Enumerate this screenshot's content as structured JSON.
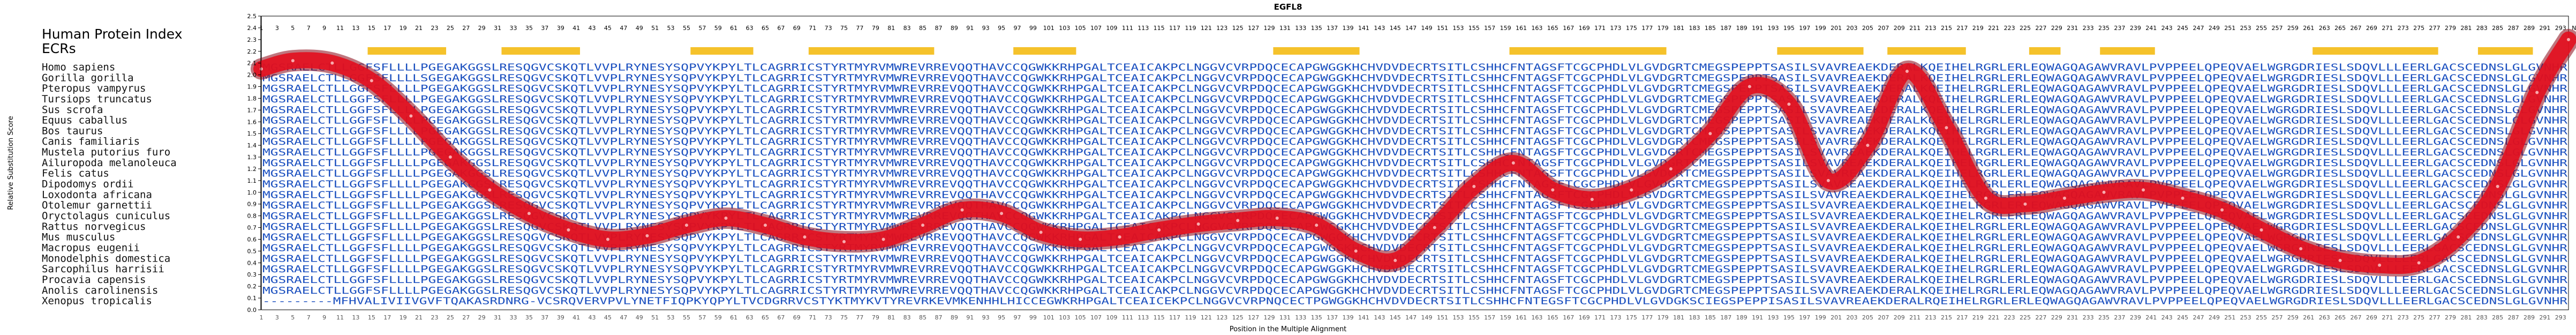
{
  "chart_data": {
    "type": "line",
    "title": "EGFL8",
    "xlabel": "Position in the Multiple Alignment",
    "ylabel": "Relative Substitution Score",
    "xlim": [
      1,
      294
    ],
    "ylim": [
      0,
      2.5
    ],
    "grid": false,
    "yticks": [
      0.0,
      0.1,
      0.2,
      0.3,
      0.4,
      0.5,
      0.6,
      0.7,
      0.8,
      0.9,
      1.0,
      1.1,
      1.2,
      1.3,
      1.4,
      1.5,
      1.6,
      1.7,
      1.8,
      1.9,
      2.0,
      2.1,
      2.2,
      2.3,
      2.4,
      2.5
    ],
    "top_tick_last_label": "N/A",
    "legend_labels": [
      "Human Protein Index",
      "ECRs"
    ],
    "species": [
      "Homo sapiens",
      "Gorilla gorilla",
      "Pteropus vampyrus",
      "Tursiops truncatus",
      "Sus scrofa",
      "Equus caballus",
      "Bos taurus",
      "Canis familiaris",
      "Mustela putorius furo",
      "Ailuropoda melanoleuca",
      "Felis catus",
      "Dipodomys ordii",
      "Loxodonta africana",
      "Otolemur garnettii",
      "Oryctolagus cuniculus",
      "Rattus norvegicus",
      "Mus musculus",
      "Macropus eugenii",
      "Monodelphis domestica",
      "Sarcophilus harrisii",
      "Procavia capensis",
      "Anolis carolinensis",
      "Xenopus tropicalis"
    ],
    "sequences": [
      "MGSRAELCTLLGGFSFLLLLPGEGAKGGSLRESQGVCSKQTLVVPLRYNESYSQPVYKPYLTLCAGRRICSTYRTMYRVMWREVRREVQQTHAVCCQGWKKRHPGALTCEAICAKPCLNGGVCVRPDQCECAPGWGGKHCHVDVDECRTSITLCSHHCFNTAGSFTCGCPHDLVLGVDGRTCMEGSPEPPTSASILSVAVREAEKDERALKQEIHELRGRLERLEQWAGQAGAWVRAVLPVPPEELQPEQVAELWGRGDRIESLSDQVLLLEERLGACSCEDNSLGLGVNHR",
      "MGSRAELCTLLGGFSFLLLLSGEGAKGGSLRESQGVCSKQTLVVPLRYNESYSQPVYKPYLTLCAGRRICSTYRTMYRVMWREVRREVQQTHAVCCQGWKKRHPGALTCEAICAKPCLNGGVCVRPDQCECAPGWGGKHCHVDVDECRTSITLCSHHCFNTAGSFTCGCPHDLVLGVDGRTCMEGSPEPPTSASILSVAVREAEKDERALKQEIHELRGRLERLEQWAGQAGAWVRAVLPVPPEELQPEQVAELWGRGDRIESLSDQVLLLEERLGACSCEDNSLGLGVNHR",
      "MGSRAELCTLLGGFSFLLLLPGEGAKGGSLRESQGVCSKQTLVVPLRYNESYSQPVYKPYLTLCAGRRICSTYRTMYRVMWREVRREVQQTHAVCCQGWKKRHPGALTCEAICAKPCLNGGVCVRPDQCECAPGWGGKHCHVDVDECRTSITLCSHHCFNTAGSFTCGCPHDLVLGVDGRTCMEGSPEPPTSASILSVAVREAEKDERALKQEIHELRGRLERLEQWAGQAGAWVRAVLPVPPEELQPEQVAELWGRGDRIESLSDQVLLLEERLGACSCEDNSLGLGVNHR",
      "MGSRAELCTLLGGFSFLLLLPGEGAKGGSLRESQGVCSKQTLVVPLRYNESYSQPVYKPYLTLCAGRRICSTYRTMYRVMWREVRREVQQTHAVCCQGWKKRHPGALTCEAICAKPCLNGGVCVRPDQCECAPGWGGKHCHVDVDECRTSITLCSHHCFNTAGSFTCGCPHDLVLGVDGRTCMEGSPEPPTSASILSVAVREAEKDERALKQEIHELRGRLERLEQWAGQAGAWVRAVLPVPPEELQPEQVAELWGRGDRIESLSDQVLLLEERLGACSCEDNSLGLGVNHR",
      "MGSRAELCTLLGGFSFLLLLPGEGAKGGSLRESQGVCSKQTLVVPLRYNESYSQPVYKPYLTLCAGRRICSTYRTMYRVMWREVRREVQQTHAVCCQGWKKRHPGALTCEAICAKPCLNGGVCVRPDQCECAPGWGGKHCHVDVDECRTSITLCSHHCFNTAGSFTCGCPHDLVLGVDGRTCMEGSPEPPTSASILSVAVREAEKDERALKQEIHELRGRLERLEQWAGQAGAWVRAVLPVPPEELQPEQVAELWGRGDRIESLSDQVLLLEERLGACSCEDNSLGLGVNHR",
      "MGSRAELCTLLGGFSFLLLLPGEGAKGGSLRESQGVCSKQTLVVPLRYNESYSQPVYKPYLTLCAGRRICSTYRTMYRVMWREVRREVQQTHAVCCQGWKKRHPGALTCEAICAKPCLNGGVCVRPDQCECAPGWGGKHCHVDVDECRTSITLCSHHCFNTAGSFTCGCPHDLVLGVDGRTCMEGSPEPPTSASILSVAVREAEKDERALKQEIHELRGRLERLEQWAGQAGAWVRAVLPVPPEELQPEQVAELWGRGDRIESLSDQVLLLEERLGACSCEDNSLGLGVNHR",
      "MGSRAELCTLLGGFSFLLLLPGEGAKGGSLRESQGVCSKQTLVVPLRYNESYSQPVYKPYLTLCAGRRICSTYRTMYRVMWREVRREVQQTHAVCCQGWKKRHPGALTCEAICAKPCLNGGVCVRPDQCECAPGWGGKHCHVDVDECRTSITLCSHHCFNTAGSFTCGCPHDLVLGVDGRTCMEGSPEPPTSASILSVAVREAEKDERALKQEIHELRGRLERLEQWAGQAGAWVRAVLPVPPEELQPEQVAELWGRGDRIESLSDQVLLLEERLGACSCEDNSLGLGVNHR",
      "MGSRAELCTLLGGFSFLLLLPGEGAKGGSLRESQGVCSKQTLVVPLRYNESYSQPVYKPYLTLCAGRRICSTYRTMYRVMWREVRREVQQTHAVCCQGWKKRHPGALTCEAICAKPCLNGGVCVRPDQCECAPGWGGKHCHVDVDECRTSITLCSHHCFNTAGSFTCGCPHDLVLGVDGRTCMEGSPEPPTSASILSVAVREAEKDERALKQEIHELRGRLERLEQWAGQAGAWVRAVLPVPPEELQPEQVAELWGRGDRIESLSDQVLLLEERLGACSCEDNSLGLGVNHR",
      "MGSRAELCTLLGGFSFLLLLPGEGAKGGSLRESQGVCSKQTLVVPLRYNESYSQPVYKPYLTLCAGRRICSTYRTMYRVMWREVRREVQQTHAVCCQGWKKRHPGALTCEAICAKPCLNGGVCVRPDQCECAPGWGGKHCHVDVDECRTSITLCSHHCFNTAGSFTCGCPHDLVLGVDGRTCMEGSPEPPTSASILSVAVREAEKDERALKQEIHELRGRLERLEQWAGQAGAWVRAVLPVPPEELQPEQVAELWGRGDRIESLSDQVLLLEERLGACSCEDNSLGLGVNHR",
      "MGSRAELCTLLGGFSFLLLLPGEGAKGGSLRESQGVCSKQTLVVPLRYNESYSQPVYKPYLTLCAGRRICSTYRTMYRVMWREVRREVQQTHAVCCQGWKKRHPGALTCEAICAKPCLNGGVCVRPDQCECAPGWGGKHCHVDVDECRTSITLCSHHCFNTAGSFTCGCPHDLVLGVDGRTCMEGSPEPPTSASILSVAVREAEKDERALKQEIHELRGRLERLEQWAGQAGAWVRAVLPVPPEELQPEQVAELWGRGDRIESLSDQVLLLEERLGACSCEDNSLGLGVNHR",
      "MGSRAELCTLLGGFSFLLLLPGEGAKGGSLRESQGVCSKQTLVVPLRYNESYSQPVYKPYLTLCAGRRICSTYRTMYRVMWREVRREVQQTHAVCCQGWKKRHPGALTCEAICAKPCLNGGVCVRPDQCECAPGWGGKHCHVDVDECRTSITLCSHHCFNTAGSFTCGCPHDLVLGVDGRTCMEGSPEPPTSASILSVAVREAEKDERALKQEIHELRGRLERLEQWAGQAGAWVRAVLPVPPEELQPEQVAELWGRGDRIESLSDQVLLLEERLGACSCEDNSLGLGVNHR",
      "MGSRAELCTLLGGFSFLLLLPGEGAKGGSLRESQGVCSKQTLVVPLRYNESYSQPVYKPYLTLCAGRRICSTYRTMYRVMWREVRREVQQTHAVCCQGWKKRHPGALTCEAICAKPCLNGGVCVRPDQCECAPGWGGKHCHVDVDECRTSITLCSHHCFNTAGSFTCGCPHDLVLGVDGRTCMEGSPEPPTSASILSVAVREAEKDERALKQEIHELRGRLERLEQWAGQAGAWVRAVLPVPPEELQPEQVAELWGRGDRIESLSDQVLLLEERLGACSCEDNSLGLGVNHR",
      "MGSRAELCTLLGGFSFLLLLPGEGAKGGSLRESQGVCSKQTLVVPLRYNESYSQPVYKPYLTLCAGRRICSTYRTMYRVMWREVRREVQQTHAVCCQGWKKRHPGALTCEAICAKPCLNGGVCVRPDQCECAPGWGGKHCHVDVDECRTSITLCSHHCFNTAGSFTCGCPHDLVLGVDGRTCMEGSPEPPTSASILSVAVREAEKDERALKQEIHELRGRLERLEQWAGQAGAWVRAVLPVPPEELQPEQVAELWGRGDRIESLSDQVLLLEERLGACSCEDNSLGLGVNHR",
      "MGSRAELCTLLGGFSFLLLLPGEGAKGGSLRESQGVCSKQTLVVPLRYNESYSQPVYKPYLTLCAGRRICSTYRTMYRVMWREVRREVQQTHAVCCQGWKKRHPGALTCEAICAKPCLNGGVCVRPDQCECAPGWGGKHCHVDVDECRTSITLCSHHCFNTAGSFTCGCPHDLVLGVDGRTCMEGSPEPPTSASILSVAVREAEKDERALKQEIHELRGRLERLEQWAGQAGAWVRAVLPVPPEELQPEQVAELWGRGDRIESLSDQVLLLEERLGACSCEDNSLGLGVNHR",
      "MGSRAELCTLLGGFSFLLLLPGEGAKGGSLRESQGVCSKQTLVVPLRYNESYSQPVYKPYLTLCAGRRICSTYRTMYRVMWREVRREVQQTHAVCCQGWKKRHPGALTCEAICAKPCLNGGVCVRPDQCECAPGWGGKHCHVDVDECRTSITLCSHHCFNTAGSFTCGCPHDLVLGVDGRTCMEGSPEPPTSASILSVAVREAEKDERALKQEIHELRGRLERLEQWAGQAGAWVRAVLPVPPEELQPEQVAELWGRGDRIESLSDQVLLLEERLGACSCEDNSLGLGVNHR",
      "MGSRAELCTLLGGFSFLLLLPGEGAKGGSLRESQGVCSKQTLVVPLRYNESYSQPVYKPYLTLCAGRRICSTYRTMYRVMWREVRREVQQTHAVCCQGWKKRHPGALTCEAICAKPCLNGGVCVRPDQCECAPGWGGKHCHVDVDECRTSITLCSHHCFNTAGSFTCGCPHDLVLGVDGRTCMEGSPEPPTSASILSVAVREAEKDERALKQEIHELRGRLERLEQWAGQAGAWVRAVLPVPPEELQPEQVAELWGRGDRIESLSDQVLLLEERLGACSCEDNSLGLGVNHR",
      "MGSRAELCTLLGGFSFLLLLPGEGAKGGSLRESQGVCSKQTLVVPLRYNESYSQPVYKPYLTLCAGRRICSTYRTMYRVMWREVRREVQQTHAVCCQGWKKRHPGALTCEAICAKPCLNGGVCVRPDQCECAPGWGGKHCHVDVDECRTSITLCSHHCFNTAGSFTCGCPHDLVLGVDGRTCMEGSPEPPTSASILSVAVREAEKDERALKQEIHELRGRLERLEQWAGQAGAWVRAVLPVPPEELQPEQVAELWGRGDRIESLSDQVLLLEERLGACSCEDNSLGLGVNHR",
      "MGSRAELCTLLGGFSFLLLLPGEGAKGGSLRESQGVCSKQTLVVPLRYNESYSQPVYKPYLTLCAGRRICSTYRTMYRVMWREVRREVQQTHAVCCQGWKKRHPGALTCEAICAKPCLNGGVCVRPDQCECAPGWGGKHCHVDVDECRTSITLCSHHCFNTAGSFTCGCPHDLVLGVDGRTCMEGSPEPPTSASILSVAVREAEKDERALKQEIHELRGRLERLEQWAGQAGAWVRAVLPVPPEELQPEQVAELWGRGDRIESLSDQVLLLEERLGACSCEDNSLGLGVNHR",
      "MGSRAELCTLLGGFSFLLLLPGEGAKGGSLRESQGVCSKQTLVVPLRYNESYSQPVYKPYLTLCAGRRICSTYRTMYRVMWREVRREVQQTHAVCCQGWKKRHPGALTCEAICAKPCLNGGVCVRPDQCECAPGWGGKHCHVDVDECRTSITLCSHHCFNTAGSFTCGCPHDLVLGVDGRTCMEGSPEPPTSASILSVAVREAEKDERALKQEIHELRGRLERLEQWAGQAGAWVRAVLPVPPEELQPEQVAELWGRGDRIESLSDQVLLLEERLGACSCEDNSLGLGVNHR",
      "MGSRAELCTLLGGFSFLLLLPGEGAKGGSLRESQGVCSKQTLVVPLRYNESYSQPVYKPYLTLCAGRRICSTYRTMYRVMWREVRREVQQTHAVCCQGWKKRHPGALTCEAICAKPCLNGGVCVRPDQCECAPGWGGKHCHVDVDECRTSITLCSHHCFNTAGSFTCGCPHDLVLGVDGRTCMEGSPEPPTSASILSVAVREAEKDERALKQEIHELRGRLERLEQWAGQAGAWVRAVLPVPPEELQPEQVAELWGRGDRIESLSDQVLLLEERLGACSCEDNSLGLGVNHR",
      "MGSRAELCTLLGGFSFLLLLPGEGAKGGSLRESQGVCSKQTLVVPLRYNESYSQPVYKPYLTLCAGRRICSTYRTMYRVMWREVRREVQQTHAVCCQGWKKRHPGALTCEAICAKPCLNGGVCVRPDQCECAPGWGGKHCHVDVDECRTSITLCSHHCFNTAGSFTCGCPHDLVLGVDGRTCMEGSPEPPTSASILSVAVREAEKDERALKQEIHELRGRLERLEQWAGQAGAWVRAVLPVPPEELQPEQVAELWGRGDRIESLSDQVLLLEERLGACSCEDNSLGLGVNHR",
      "MGSRAELCTLLGGFSFLLLLPGEGAKGGSLRESQGVCSKQTLVVPLRYNESYSQPVYKPYLTLCAGRRICSTYRTMYRVMWREVRREVQQTHAVCCQGWKKRHPGALTCEAICAKPCLNGGVCVRPDQCECAPGWGGKHCHVDVDECRTSITLCSHHCFNTAGSFTCGCPHDLVLGVDGRTCMEGSPEPPTSASILSVAVREAEKDERALKQEIHELRGRLERLEQWAGQAGAWVRAVLPVPPEELQPEQVAELWGRGDRIESLSDQVLLLEERLGACSCEDNSLGLGVNHR",
      "---------MFHVALIVIIVGVFTQAKASRDNRG-VCSRQVERVPVLYNETFIQPKYQPYLTVCDGRRVCSTYKTMYKVTYREVRKEVMKENHHLHICCEGWKRHPGALTCEAICEKPCLNGGVCVRPNQCECTPGWGGKHCHVDVDECRTSITLCSHHCFNTEGSFTCGCPHDLVLGVDGKSCIEGSPEPPISASILSVAVREAEKDERALRQEIHELRGRLERLEQWAGQAGAWVRAVLPVPPEELQPEQVAELWGRGDRIESLSDQVLLLEERLGACSCEDNSLGLGVNHR"
    ],
    "ecr_regions": [
      [
        15,
        24
      ],
      [
        32,
        41
      ],
      [
        56,
        63
      ],
      [
        71,
        86
      ],
      [
        97,
        104
      ],
      [
        130,
        140
      ],
      [
        160,
        179
      ],
      [
        194,
        204
      ],
      [
        208,
        217
      ],
      [
        226,
        229
      ],
      [
        235,
        241
      ],
      [
        262,
        277
      ],
      [
        283,
        289
      ]
    ],
    "series": [
      {
        "x": [
          1,
          5,
          10,
          15,
          20,
          25,
          30,
          35,
          40,
          45,
          50,
          55,
          60,
          65,
          70,
          75,
          80,
          85,
          90,
          95,
          100,
          105,
          110,
          115,
          120,
          125,
          130,
          135,
          140,
          145,
          150,
          155,
          160,
          165,
          170,
          175,
          180,
          185,
          190,
          195,
          200,
          205,
          210,
          215,
          220,
          225,
          230,
          235,
          240,
          245,
          250,
          255,
          260,
          265,
          270,
          275,
          280,
          285,
          290,
          294
        ],
        "y": [
          2.05,
          2.12,
          2.1,
          1.95,
          1.65,
          1.3,
          1.02,
          0.82,
          0.68,
          0.6,
          0.63,
          0.72,
          0.78,
          0.72,
          0.62,
          0.58,
          0.6,
          0.72,
          0.85,
          0.82,
          0.66,
          0.6,
          0.62,
          0.68,
          0.73,
          0.76,
          0.78,
          0.72,
          0.5,
          0.42,
          0.7,
          1.05,
          1.25,
          1.02,
          0.94,
          1.02,
          1.2,
          1.5,
          1.9,
          1.75,
          1.1,
          1.4,
          2.03,
          1.55,
          0.95,
          0.9,
          0.95,
          1.0,
          1.02,
          0.95,
          0.85,
          0.68,
          0.52,
          0.42,
          0.38,
          0.4,
          0.62,
          1.05,
          1.85,
          2.3
        ]
      }
    ]
  }
}
